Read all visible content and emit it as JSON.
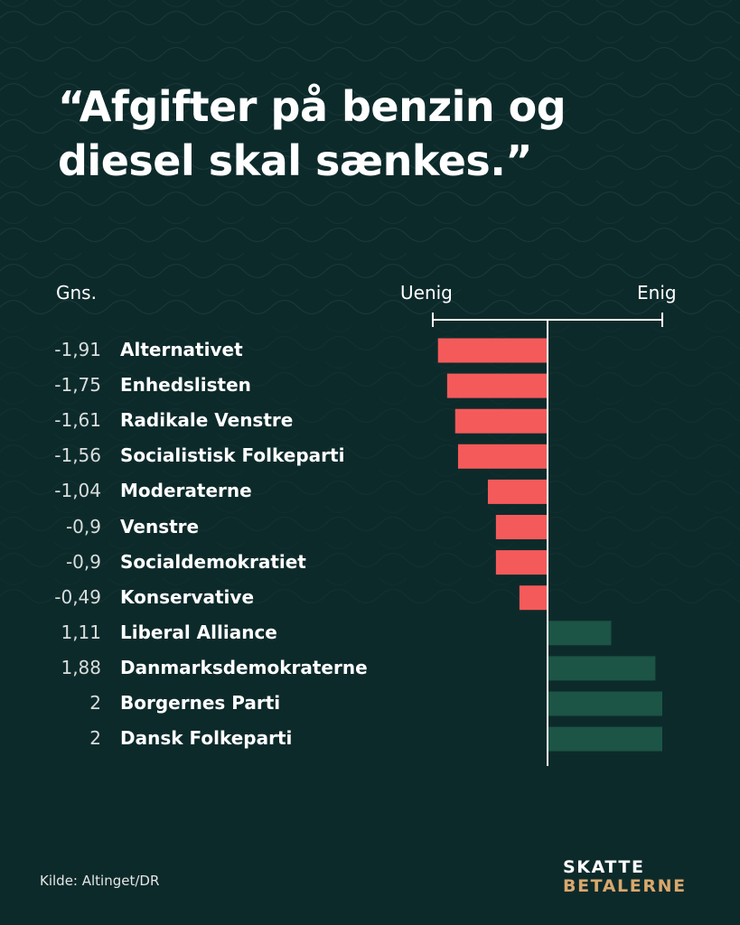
{
  "title": "“Afgifter på benzin og diesel skal sænkes.”",
  "header": {
    "avg_label": "Gns.",
    "disagree_label": "Uenig",
    "agree_label": "Enig"
  },
  "colors": {
    "background": "#0d2a2b",
    "negative": "#f55a5a",
    "positive": "#1c5445",
    "logo_accent": "#d9a86c"
  },
  "chart_data": {
    "type": "bar",
    "orientation": "horizontal",
    "title": "“Afgifter på benzin og diesel skal sænkes.”",
    "xlim": [
      -2,
      2
    ],
    "categories": [
      "Alternativet",
      "Enhedslisten",
      "Radikale Venstre",
      "Socialistisk Folkeparti",
      "Moderaterne",
      "Venstre",
      "Socialdemokratiet",
      "Konservative",
      "Liberal Alliance",
      "Danmarksdemokraterne",
      "Borgernes Parti",
      "Dansk Folkeparti"
    ],
    "values": [
      -1.91,
      -1.75,
      -1.61,
      -1.56,
      -1.04,
      -0.9,
      -0.9,
      -0.49,
      1.11,
      1.88,
      2,
      2
    ],
    "value_labels": [
      "-1,91",
      "-1,75",
      "-1,61",
      "-1,56",
      "-1,04",
      "-0,9",
      "-0,9",
      "-0,49",
      "1,11",
      "1,88",
      "2",
      "2"
    ]
  },
  "source": "Kilde: Altinget/DR",
  "logo": {
    "line1": "SKATTE",
    "line2": "BETALERNE"
  }
}
